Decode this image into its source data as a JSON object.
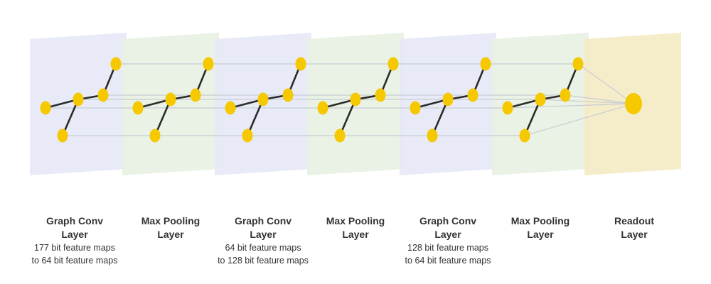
{
  "colors": {
    "conv_panel": "#e6e9f6",
    "pool_panel": "#e8f1e3",
    "readout_panel": "#f4ebc6",
    "node": "#f5c800",
    "edge": "#2b2b2b",
    "link": "#c8ccd4"
  },
  "layers": [
    {
      "type": "conv",
      "title_line1": "Graph Conv",
      "title_line2": "Layer",
      "detail_line1": "177 bit feature maps",
      "detail_line2": "to 64 bit feature maps"
    },
    {
      "type": "pool",
      "title_line1": "Max Pooling",
      "title_line2": "Layer",
      "detail_line1": "",
      "detail_line2": ""
    },
    {
      "type": "conv",
      "title_line1": "Graph Conv",
      "title_line2": "Layer",
      "detail_line1": "64 bit feature maps",
      "detail_line2": "to 128 bit feature maps"
    },
    {
      "type": "pool",
      "title_line1": "Max Pooling",
      "title_line2": "Layer",
      "detail_line1": "",
      "detail_line2": ""
    },
    {
      "type": "conv",
      "title_line1": "Graph Conv",
      "title_line2": "Layer",
      "detail_line1": "128 bit feature maps",
      "detail_line2": "to 64 bit feature maps"
    },
    {
      "type": "pool",
      "title_line1": "Max Pooling",
      "title_line2": "Layer",
      "detail_line1": "",
      "detail_line2": ""
    },
    {
      "type": "readout",
      "title_line1": "Readout",
      "title_line2": "Layer",
      "detail_line1": "",
      "detail_line2": ""
    }
  ]
}
